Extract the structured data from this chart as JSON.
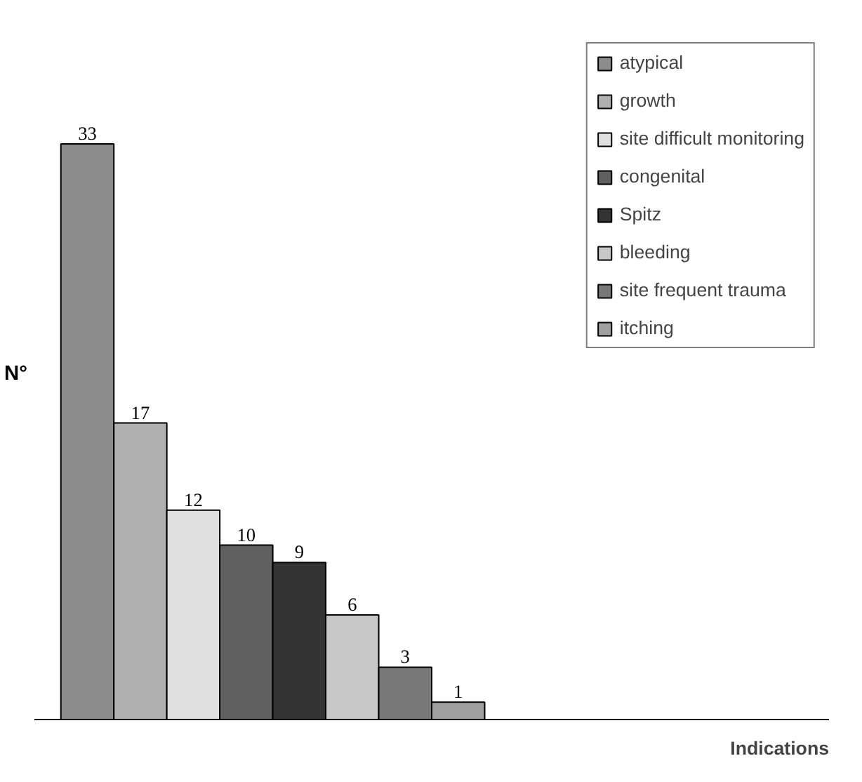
{
  "chart_data": {
    "type": "bar",
    "ylabel": "N°",
    "annotations": [
      "Indications"
    ],
    "categories": [
      null,
      null,
      null,
      null,
      null,
      null,
      null,
      null
    ],
    "series": [
      {
        "name": "atypical",
        "color": "#8c8c8c",
        "values": [
          33,
          null,
          null,
          null,
          null,
          null,
          null,
          null
        ]
      },
      {
        "name": "growth",
        "color": "#b0b0b0",
        "values": [
          null,
          17,
          null,
          null,
          null,
          null,
          null,
          null
        ]
      },
      {
        "name": "site difficult monitoring",
        "color": "#e0e0e0",
        "values": [
          null,
          null,
          12,
          null,
          null,
          null,
          null,
          null
        ]
      },
      {
        "name": "congenital",
        "color": "#606060",
        "values": [
          null,
          null,
          null,
          10,
          null,
          null,
          null,
          null
        ]
      },
      {
        "name": "Spitz",
        "color": "#333333",
        "values": [
          null,
          null,
          null,
          null,
          9,
          null,
          null,
          null
        ]
      },
      {
        "name": "bleeding",
        "color": "#c8c8c8",
        "values": [
          null,
          null,
          null,
          null,
          null,
          6,
          null,
          null
        ]
      },
      {
        "name": "site frequent trauma",
        "color": "#787878",
        "values": [
          null,
          null,
          null,
          null,
          null,
          null,
          3,
          null
        ]
      },
      {
        "name": "itching",
        "color": "#a0a0a0",
        "values": [
          null,
          null,
          null,
          null,
          null,
          null,
          null,
          1
        ]
      }
    ],
    "data_labels": true,
    "stacked": true,
    "legend": "top right"
  }
}
